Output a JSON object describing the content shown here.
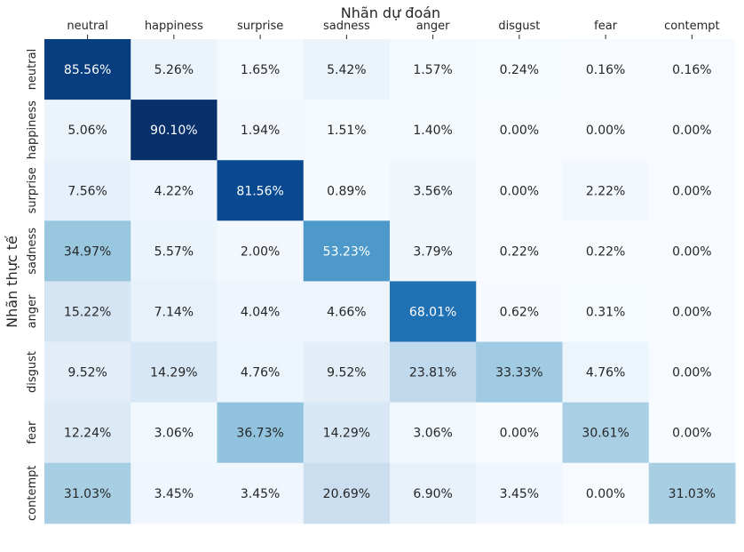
{
  "chart_data": {
    "type": "heatmap",
    "xlabel": "Nhãn dự đoán",
    "ylabel": "Nhãn thực tế",
    "x_labels": [
      "neutral",
      "happiness",
      "surprise",
      "sadness",
      "anger",
      "disgust",
      "fear",
      "contempt"
    ],
    "y_labels": [
      "neutral",
      "happiness",
      "surprise",
      "sadness",
      "anger",
      "disgust",
      "fear",
      "contempt"
    ],
    "values": [
      [
        85.56,
        5.26,
        1.65,
        5.42,
        1.57,
        0.24,
        0.16,
        0.16
      ],
      [
        5.06,
        90.1,
        1.94,
        1.51,
        1.4,
        0.0,
        0.0,
        0.0
      ],
      [
        7.56,
        4.22,
        81.56,
        0.89,
        3.56,
        0.0,
        2.22,
        0.0
      ],
      [
        34.97,
        5.57,
        2.0,
        53.23,
        3.79,
        0.22,
        0.22,
        0.0
      ],
      [
        15.22,
        7.14,
        4.04,
        4.66,
        68.01,
        0.62,
        0.31,
        0.0
      ],
      [
        9.52,
        14.29,
        4.76,
        9.52,
        23.81,
        33.33,
        4.76,
        0.0
      ],
      [
        12.24,
        3.06,
        36.73,
        14.29,
        3.06,
        0.0,
        30.61,
        0.0
      ],
      [
        31.03,
        3.45,
        3.45,
        20.69,
        6.9,
        3.45,
        0.0,
        31.03
      ]
    ],
    "value_unit": "%",
    "colormap": "Blues",
    "value_range": [
      0,
      90.1
    ],
    "x_axis_position": "top",
    "colorbar": false
  }
}
